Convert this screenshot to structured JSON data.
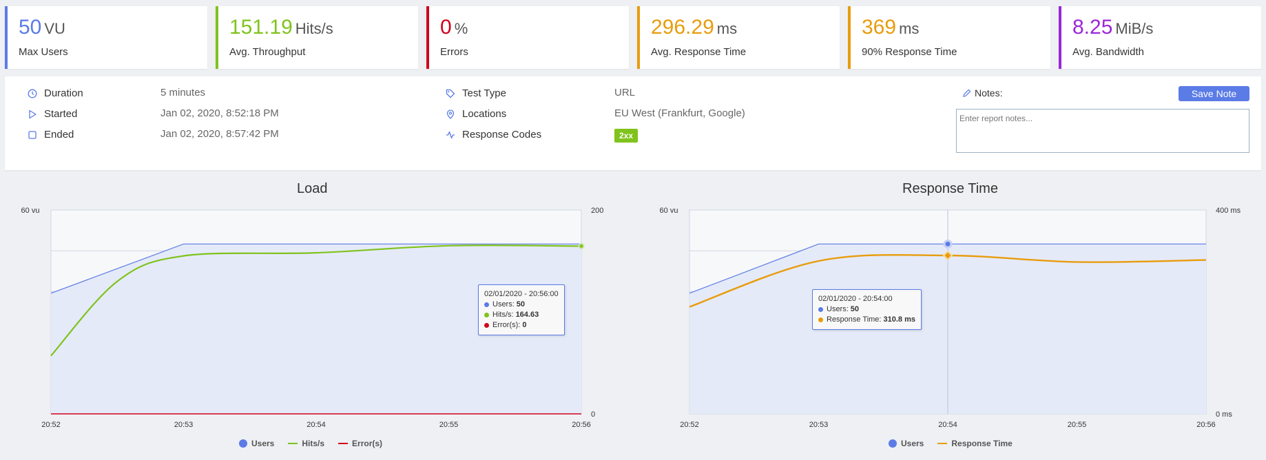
{
  "kpis": [
    {
      "value": "50",
      "unit": "VU",
      "label": "Max Users",
      "color": "#5b7be6"
    },
    {
      "value": "151.19",
      "unit": "Hits/s",
      "label": "Avg. Throughput",
      "color": "#7fc31c"
    },
    {
      "value": "0",
      "unit": "%",
      "label": "Errors",
      "color": "#d0021b"
    },
    {
      "value": "296.29",
      "unit": "ms",
      "label": "Avg. Response Time",
      "color": "#e89c0c"
    },
    {
      "value": "369",
      "unit": "ms",
      "label": "90% Response Time",
      "color": "#e89c0c"
    },
    {
      "value": "8.25",
      "unit": "MiB/s",
      "label": "Avg. Bandwidth",
      "color": "#9b27d9"
    }
  ],
  "info": {
    "duration_label": "Duration",
    "duration_value": "5 minutes",
    "started_label": "Started",
    "started_value": "Jan 02, 2020, 8:52:18 PM",
    "ended_label": "Ended",
    "ended_value": "Jan 02, 2020, 8:57:42 PM",
    "test_type_label": "Test Type",
    "test_type_value": "URL",
    "locations_label": "Locations",
    "locations_value": "EU West (Frankfurt, Google)",
    "response_codes_label": "Response Codes",
    "response_code_badge": "2xx"
  },
  "notes": {
    "label": "Notes:",
    "save_label": "Save Note",
    "placeholder": "Enter report notes..."
  },
  "load_chart": {
    "title": "Load",
    "y_left_label": "60 vu",
    "y_right_top": "200",
    "y_right_bottom": "0",
    "x_ticks": [
      "20:52",
      "20:53",
      "20:54",
      "20:55",
      "20:56"
    ],
    "legend": [
      "Users",
      "Hits/s",
      "Error(s)"
    ],
    "tooltip": {
      "time": "02/01/2020 - 20:56:00",
      "users_label": "Users:",
      "users": "50",
      "hits_label": "Hits/s:",
      "hits": "164.63",
      "errors_label": "Error(s):",
      "errors": "0"
    }
  },
  "response_chart": {
    "title": "Response Time",
    "y_left_label": "60 vu",
    "y_right_top": "400 ms",
    "y_right_bottom": "0 ms",
    "x_ticks": [
      "20:52",
      "20:53",
      "20:54",
      "20:55",
      "20:56"
    ],
    "legend": [
      "Users",
      "Response Time"
    ],
    "tooltip": {
      "time": "02/01/2020 - 20:54:00",
      "users_label": "Users:",
      "users": "50",
      "rt_label": "Response Time:",
      "rt": "310.8 ms"
    }
  },
  "chart_data": [
    {
      "type": "line",
      "title": "Load",
      "x": [
        "20:52",
        "20:53",
        "20:54",
        "20:55",
        "20:56"
      ],
      "series": [
        {
          "name": "Users",
          "axis": "left",
          "ylim": [
            0,
            60
          ],
          "points": [
            [
              "20:52",
              35.5
            ],
            [
              "20:53",
              50
            ],
            [
              "20:54",
              50
            ],
            [
              "20:55",
              50
            ],
            [
              "20:56",
              50
            ]
          ]
        },
        {
          "name": "Hits/s",
          "axis": "right",
          "ylim": [
            0,
            200
          ],
          "points": [
            [
              "20:52",
              57
            ],
            [
              "20:52:30",
              130
            ],
            [
              "20:53",
              155
            ],
            [
              "20:54",
              158
            ],
            [
              "20:55",
              165
            ],
            [
              "20:56",
              164.63
            ]
          ]
        },
        {
          "name": "Error(s)",
          "axis": "right",
          "ylim": [
            0,
            200
          ],
          "points": [
            [
              "20:52",
              0
            ],
            [
              "20:56",
              0
            ]
          ]
        }
      ],
      "colors": {
        "Users": "#5b7be6",
        "Hits/s": "#7fc31c",
        "Error(s)": "#d0021b"
      }
    },
    {
      "type": "line",
      "title": "Response Time",
      "x": [
        "20:52",
        "20:53",
        "20:54",
        "20:55",
        "20:56"
      ],
      "series": [
        {
          "name": "Users",
          "axis": "left",
          "ylim": [
            0,
            60
          ],
          "points": [
            [
              "20:52",
              35.5
            ],
            [
              "20:53",
              50
            ],
            [
              "20:54",
              50
            ],
            [
              "20:55",
              50
            ],
            [
              "20:56",
              50
            ]
          ]
        },
        {
          "name": "Response Time",
          "axis": "right",
          "ylim": [
            0,
            400
          ],
          "points": [
            [
              "20:52",
              210
            ],
            [
              "20:53",
              300
            ],
            [
              "20:54",
              310.8
            ],
            [
              "20:55",
              298
            ],
            [
              "20:56",
              302
            ]
          ]
        }
      ],
      "colors": {
        "Users": "#5b7be6",
        "Response Time": "#e89c0c"
      }
    }
  ]
}
